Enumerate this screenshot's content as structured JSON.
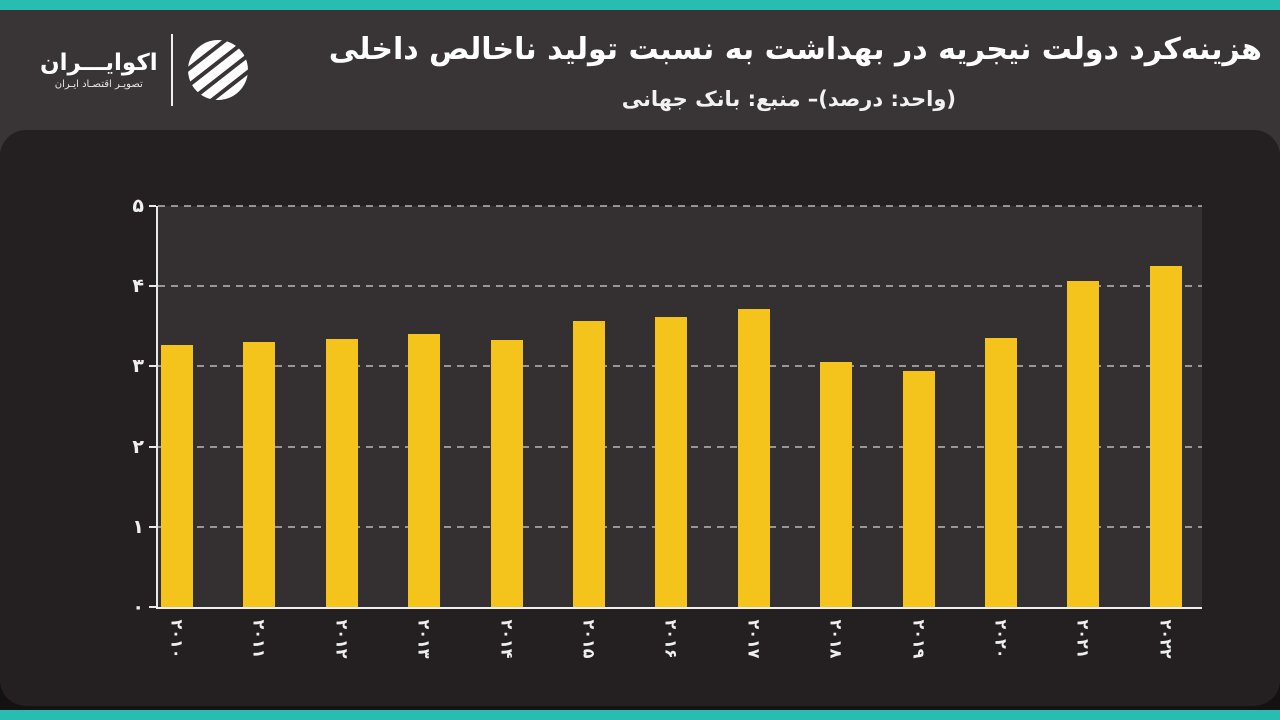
{
  "brand": {
    "name": "اکوایـــران",
    "tagline": "تصویـر اقتصـاد ایـران"
  },
  "header": {
    "title": "هزینه‌کرد دولت نیجریه در بهداشت به نسبت تولید ناخالص داخلی",
    "subtitle": "(واحد: درصد)– منبع: بانک جهانی"
  },
  "chart_data": {
    "type": "bar",
    "title": "هزینه‌کرد دولت نیجریه در بهداشت به نسبت تولید ناخالص داخلی",
    "unit": "درصد",
    "source": "بانک جهانی",
    "categories": [
      "۲۰۱۰",
      "۲۰۱۱",
      "۲۰۱۲",
      "۲۰۱۳",
      "۲۰۱۴",
      "۲۰۱۵",
      "۲۰۱۶",
      "۲۰۱۷",
      "۲۰۱۸",
      "۲۰۱۹",
      "۲۰۲۰",
      "۲۰۲۱",
      "۲۰۲۲"
    ],
    "values": [
      3.27,
      3.3,
      3.34,
      3.4,
      3.33,
      3.57,
      3.62,
      3.72,
      3.06,
      2.94,
      3.35,
      4.06,
      4.25
    ],
    "ylim": [
      0,
      5
    ],
    "y_tick_values": [
      0,
      1,
      2,
      3,
      4,
      5
    ],
    "y_tick_labels": [
      "۰",
      "۱",
      "۲",
      "۳",
      "۴",
      "۵"
    ],
    "grid": "horizontal-dashed",
    "legend": "none",
    "bar_color": "#F4C31C"
  },
  "colors": {
    "accent_teal": "#29BCB1",
    "bar_yellow": "#F4C31C",
    "header_bg": "#393536",
    "panel_bg": "#242021",
    "plot_bg": "#343031",
    "page_bg": "#141112",
    "text": "#FFFFFF",
    "grid": "#EBEBEB"
  }
}
